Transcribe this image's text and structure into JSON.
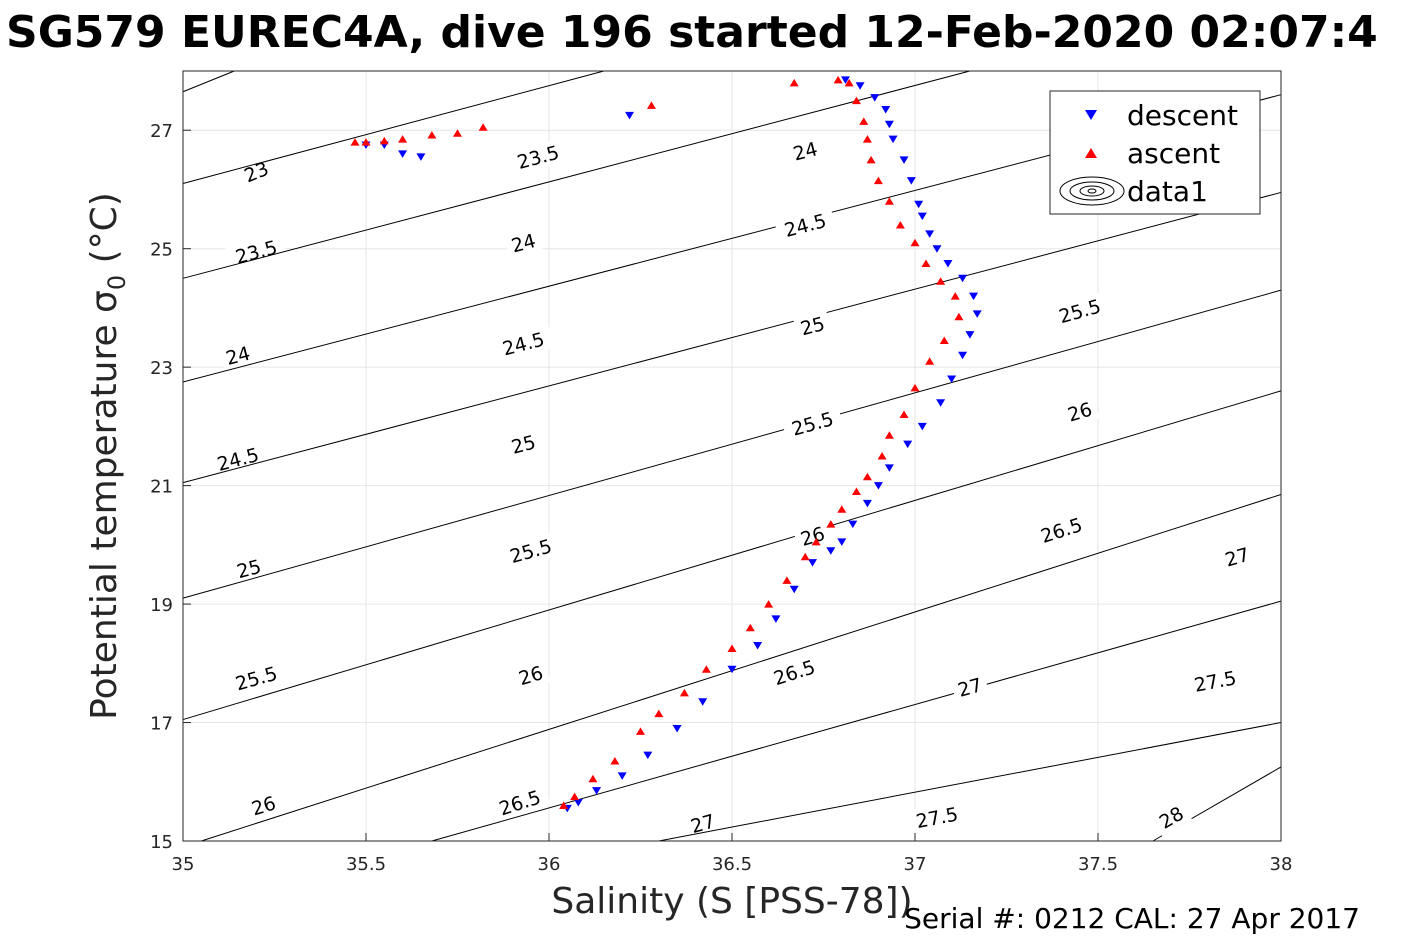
{
  "title": "SG579 EUREC4A, dive 196 started 12-Feb-2020 02:07:4",
  "footer": "Serial #: 0212  CAL: 27 Apr 2017",
  "chart_data": {
    "type": "scatter",
    "xlabel": "Salinity (S [PSS-78])",
    "ylabel_text": "Potential temperature σ",
    "ylabel_sub": "0",
    "ylabel_units": " (°C)",
    "xlim": [
      35,
      38
    ],
    "ylim": [
      15,
      28
    ],
    "xticks": [
      35,
      35.5,
      36,
      36.5,
      37,
      37.5,
      38
    ],
    "xticklabels": [
      "35",
      "35.5",
      "36",
      "36.5",
      "37",
      "37.5",
      "38"
    ],
    "yticks": [
      15,
      17,
      19,
      21,
      23,
      25,
      27
    ],
    "yticklabels": [
      "15",
      "17",
      "19",
      "21",
      "23",
      "25",
      "27"
    ],
    "grid": true,
    "legend": {
      "placement": "top-right",
      "entries": [
        {
          "label": "descent",
          "marker": "triangle-down",
          "color": "#0000ff"
        },
        {
          "label": "ascent",
          "marker": "triangle-up",
          "color": "#ff0000"
        },
        {
          "label": "data1",
          "marker": "contour",
          "color": "#000000"
        }
      ]
    },
    "contours": [
      {
        "level": 23,
        "label": "23",
        "points": [
          [
            35.0,
            27.65
          ],
          [
            35.14,
            28.0
          ]
        ],
        "labels_at": [
          [
            35.2,
            26.3
          ]
        ]
      },
      {
        "level": 23.5,
        "label": "23.5",
        "points": [
          [
            35.0,
            26.1
          ],
          [
            36.15,
            28.0
          ]
        ],
        "labels_at": [
          [
            35.2,
            24.95
          ],
          [
            35.97,
            26.55
          ]
        ]
      },
      {
        "level": 24,
        "label": "24",
        "points": [
          [
            35.0,
            24.5
          ],
          [
            37.15,
            28.0
          ]
        ],
        "labels_at": [
          [
            35.15,
            23.2
          ],
          [
            35.93,
            25.1
          ],
          [
            36.7,
            26.65
          ]
        ]
      },
      {
        "level": 24.5,
        "label": "24.5",
        "points": [
          [
            35.0,
            22.75
          ],
          [
            38.0,
            27.6
          ]
        ],
        "labels_at": [
          [
            35.15,
            21.45
          ],
          [
            35.93,
            23.4
          ],
          [
            36.7,
            25.4
          ]
        ]
      },
      {
        "level": 25,
        "label": "25",
        "points": [
          [
            35.0,
            21.05
          ],
          [
            38.0,
            25.95
          ]
        ],
        "labels_at": [
          [
            35.18,
            19.6
          ],
          [
            35.93,
            21.7
          ],
          [
            36.72,
            23.7
          ],
          [
            37.4,
            26.1
          ]
        ]
      },
      {
        "level": 25.5,
        "label": "25.5",
        "points": [
          [
            35.0,
            19.1
          ],
          [
            38.0,
            24.3
          ]
        ],
        "labels_at": [
          [
            35.2,
            17.75
          ],
          [
            35.95,
            19.9
          ],
          [
            36.72,
            22.05
          ],
          [
            37.45,
            23.95
          ]
        ]
      },
      {
        "level": 26,
        "label": "26",
        "points": [
          [
            35.0,
            17.05
          ],
          [
            38.0,
            22.6
          ]
        ],
        "labels_at": [
          [
            35.22,
            15.6
          ],
          [
            35.95,
            17.8
          ],
          [
            36.72,
            20.15
          ],
          [
            37.45,
            22.25
          ]
        ]
      },
      {
        "level": 26.5,
        "label": "26.5",
        "points": [
          [
            35.05,
            15.0
          ],
          [
            38.0,
            20.85
          ]
        ],
        "labels_at": [
          [
            35.92,
            15.65
          ],
          [
            36.67,
            17.85
          ],
          [
            37.4,
            20.25
          ]
        ]
      },
      {
        "level": 27,
        "label": "27",
        "points": [
          [
            35.68,
            15.0
          ],
          [
            38.0,
            19.05
          ]
        ],
        "labels_at": [
          [
            36.42,
            15.3
          ],
          [
            37.15,
            17.6
          ],
          [
            37.88,
            19.8
          ]
        ]
      },
      {
        "level": 27.5,
        "label": "27.5",
        "points": [
          [
            36.3,
            15.0
          ],
          [
            38.0,
            17.0
          ]
        ],
        "labels_at": [
          [
            37.06,
            15.4
          ],
          [
            37.82,
            17.7
          ]
        ]
      },
      {
        "level": 28,
        "label": "28",
        "points": [
          [
            37.65,
            15.0
          ],
          [
            38.0,
            16.25
          ]
        ],
        "labels_at": [
          [
            37.7,
            15.4
          ]
        ]
      }
    ],
    "series": [
      {
        "name": "descent",
        "marker": "triangle-down",
        "color": "#0000ff",
        "points": [
          [
            36.05,
            15.55
          ],
          [
            36.08,
            15.65
          ],
          [
            36.13,
            15.85
          ],
          [
            36.2,
            16.1
          ],
          [
            36.27,
            16.45
          ],
          [
            36.35,
            16.9
          ],
          [
            36.42,
            17.35
          ],
          [
            36.5,
            17.9
          ],
          [
            36.57,
            18.3
          ],
          [
            36.62,
            18.75
          ],
          [
            36.67,
            19.25
          ],
          [
            36.72,
            19.7
          ],
          [
            36.77,
            19.9
          ],
          [
            36.8,
            20.05
          ],
          [
            36.83,
            20.35
          ],
          [
            36.87,
            20.7
          ],
          [
            36.9,
            21.0
          ],
          [
            36.93,
            21.3
          ],
          [
            36.98,
            21.7
          ],
          [
            37.02,
            22.0
          ],
          [
            37.07,
            22.4
          ],
          [
            37.1,
            22.8
          ],
          [
            37.13,
            23.2
          ],
          [
            37.15,
            23.55
          ],
          [
            37.17,
            23.9
          ],
          [
            37.16,
            24.2
          ],
          [
            37.13,
            24.5
          ],
          [
            37.09,
            24.75
          ],
          [
            37.06,
            25.0
          ],
          [
            37.04,
            25.25
          ],
          [
            37.02,
            25.55
          ],
          [
            37.01,
            25.75
          ],
          [
            36.99,
            26.15
          ],
          [
            36.97,
            26.5
          ],
          [
            36.94,
            26.85
          ],
          [
            36.93,
            27.1
          ],
          [
            36.92,
            27.35
          ],
          [
            36.89,
            27.55
          ],
          [
            36.85,
            27.75
          ],
          [
            36.81,
            27.85
          ],
          [
            36.22,
            27.25
          ],
          [
            35.5,
            26.75
          ],
          [
            35.55,
            26.75
          ],
          [
            35.6,
            26.6
          ],
          [
            35.65,
            26.55
          ]
        ]
      },
      {
        "name": "ascent",
        "marker": "triangle-up",
        "color": "#ff0000",
        "points": [
          [
            36.04,
            15.6
          ],
          [
            36.07,
            15.75
          ],
          [
            36.12,
            16.05
          ],
          [
            36.18,
            16.35
          ],
          [
            36.25,
            16.85
          ],
          [
            36.3,
            17.15
          ],
          [
            36.37,
            17.5
          ],
          [
            36.43,
            17.9
          ],
          [
            36.5,
            18.25
          ],
          [
            36.55,
            18.6
          ],
          [
            36.6,
            19.0
          ],
          [
            36.65,
            19.4
          ],
          [
            36.7,
            19.8
          ],
          [
            36.73,
            20.05
          ],
          [
            36.77,
            20.35
          ],
          [
            36.8,
            20.6
          ],
          [
            36.84,
            20.9
          ],
          [
            36.87,
            21.15
          ],
          [
            36.91,
            21.5
          ],
          [
            36.93,
            21.85
          ],
          [
            36.97,
            22.2
          ],
          [
            37.0,
            22.65
          ],
          [
            37.04,
            23.1
          ],
          [
            37.08,
            23.45
          ],
          [
            37.12,
            23.85
          ],
          [
            37.11,
            24.2
          ],
          [
            37.07,
            24.45
          ],
          [
            37.03,
            24.75
          ],
          [
            37.0,
            25.1
          ],
          [
            36.96,
            25.4
          ],
          [
            36.93,
            25.8
          ],
          [
            36.9,
            26.15
          ],
          [
            36.88,
            26.5
          ],
          [
            36.87,
            26.85
          ],
          [
            36.86,
            27.15
          ],
          [
            36.84,
            27.5
          ],
          [
            36.82,
            27.8
          ],
          [
            36.79,
            27.85
          ],
          [
            36.67,
            27.8
          ],
          [
            36.28,
            27.42
          ],
          [
            35.82,
            27.05
          ],
          [
            35.75,
            26.95
          ],
          [
            35.68,
            26.92
          ],
          [
            35.6,
            26.85
          ],
          [
            35.55,
            26.82
          ],
          [
            35.5,
            26.8
          ],
          [
            35.47,
            26.8
          ]
        ]
      }
    ]
  }
}
